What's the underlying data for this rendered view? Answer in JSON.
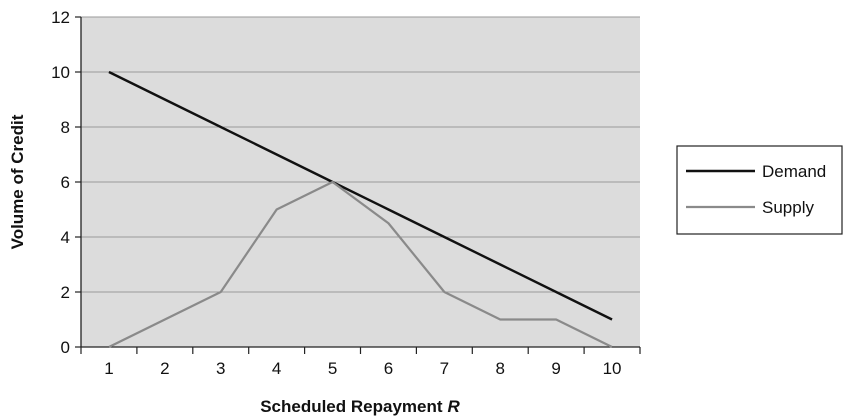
{
  "chart_data": {
    "type": "line",
    "xlabel": "Scheduled Repayment",
    "xlabel_var": "R",
    "ylabel": "Volume of Credit",
    "categories": [
      "1",
      "2",
      "3",
      "4",
      "5",
      "6",
      "7",
      "8",
      "9",
      "10"
    ],
    "x": [
      1,
      2,
      3,
      4,
      5,
      6,
      7,
      8,
      9,
      10
    ],
    "ylim": [
      0,
      12
    ],
    "yticks": [
      0,
      2,
      4,
      6,
      8,
      10,
      12
    ],
    "grid": true,
    "legend_position": "right",
    "plot_background": "#dcdcdc",
    "series": [
      {
        "name": "Demand",
        "color": "#111111",
        "values": [
          10,
          9,
          8,
          7,
          6,
          5,
          4,
          3,
          2,
          1
        ]
      },
      {
        "name": "Supply",
        "color": "#8a8a8a",
        "values": [
          0,
          1,
          2,
          5,
          6,
          4.5,
          2,
          1,
          1,
          0
        ]
      }
    ]
  }
}
